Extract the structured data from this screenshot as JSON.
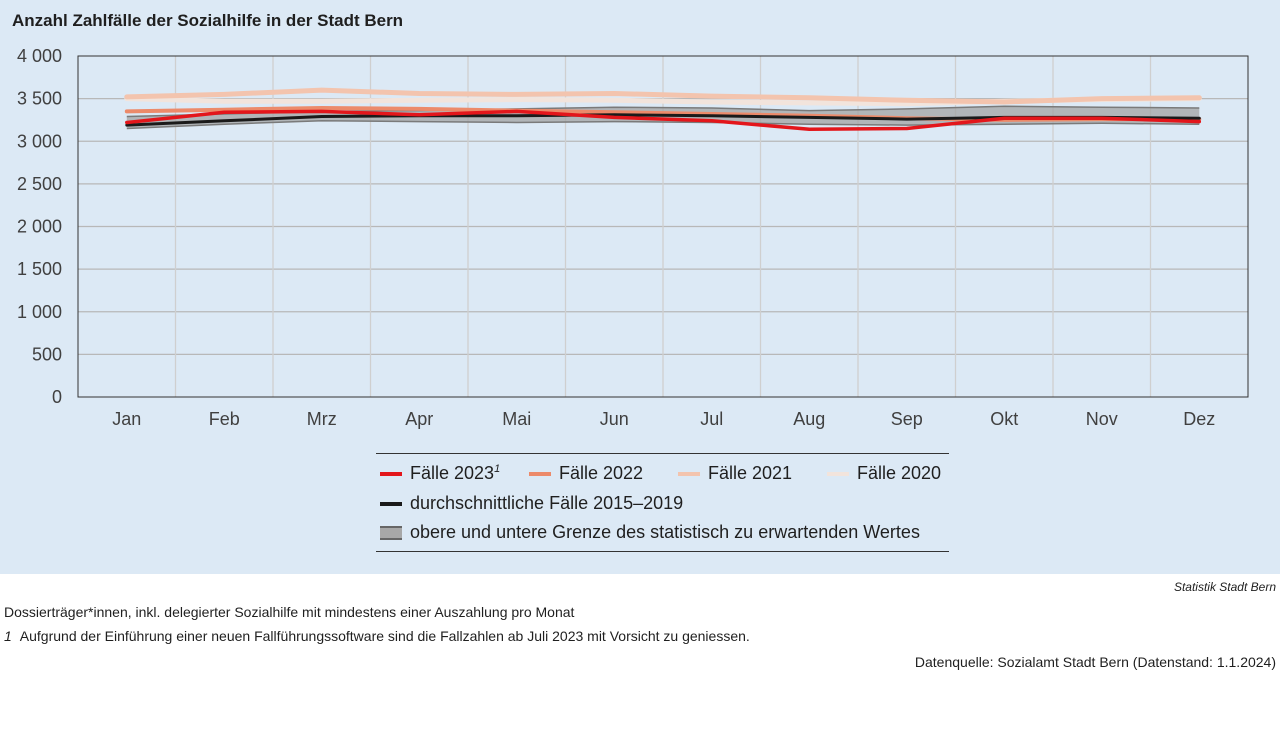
{
  "chart_data": {
    "type": "line",
    "title": "Anzahl Zahlfälle der Sozialhilfe in der Stadt Bern",
    "xlabel": "",
    "ylabel": "",
    "categories": [
      "Jan",
      "Feb",
      "Mrz",
      "Apr",
      "Mai",
      "Jun",
      "Jul",
      "Aug",
      "Sep",
      "Okt",
      "Nov",
      "Dez"
    ],
    "ylim": [
      0,
      4000
    ],
    "yticks": [
      0,
      500,
      1000,
      1500,
      2000,
      2500,
      3000,
      3500,
      4000
    ],
    "ytick_labels": [
      "0",
      "500",
      "1 000",
      "1 500",
      "2 000",
      "2 500",
      "3 000",
      "3 500",
      "4 000"
    ],
    "grid": true,
    "legend_position": "bottom",
    "band": {
      "name": "obere und untere Grenze des statistisch zu erwartenden Wertes",
      "upper": [
        3290,
        3320,
        3350,
        3360,
        3380,
        3400,
        3390,
        3360,
        3380,
        3410,
        3400,
        3390
      ],
      "lower": [
        3150,
        3200,
        3240,
        3230,
        3220,
        3230,
        3220,
        3200,
        3190,
        3200,
        3210,
        3200
      ],
      "color": "#9a9a9a"
    },
    "series": [
      {
        "name": "Fälle 2020",
        "color": "#f2e4dc",
        "values": [
          3500,
          3470,
          3470,
          3480,
          3490,
          3480,
          3460,
          3450,
          3440,
          3470,
          3490,
          3500
        ]
      },
      {
        "name": "Fälle 2021",
        "color": "#f3c4ae",
        "values": [
          3520,
          3550,
          3600,
          3560,
          3550,
          3560,
          3530,
          3510,
          3480,
          3460,
          3500,
          3510
        ]
      },
      {
        "name": "Fälle 2022",
        "color": "#ec8a6a",
        "values": [
          3350,
          3370,
          3390,
          3380,
          3360,
          3340,
          3320,
          3300,
          3270,
          3250,
          3260,
          3260
        ]
      },
      {
        "name": "durchschnittliche Fälle 2015–2019",
        "color": "#1a1a1a",
        "values": [
          3190,
          3240,
          3290,
          3300,
          3300,
          3310,
          3300,
          3280,
          3260,
          3280,
          3280,
          3270
        ]
      },
      {
        "name": "Fälle 2023",
        "color": "#e3161b",
        "values": [
          3220,
          3340,
          3350,
          3310,
          3350,
          3280,
          3240,
          3140,
          3150,
          3270,
          3270,
          3230
        ]
      }
    ]
  },
  "legend": {
    "item_2023": "Fälle 2023",
    "item_2023_sup": "1",
    "item_2022": "Fälle 2022",
    "item_2021": "Fälle 2021",
    "item_2020": "Fälle 2020",
    "item_avg": "durchschnittliche Fälle 2015–2019",
    "item_band": "obere und untere Grenze des statistisch zu erwartenden Wertes"
  },
  "footer": {
    "credit": "Statistik Stadt Bern",
    "note_1": "Dossierträger*innen, inkl. delegierter Sozialhilfe mit mindestens einer Auszahlung pro Monat",
    "note_2_marker": "1",
    "note_2": "Aufgrund der Einführung einer neuen Fallführungssoftware sind die Fallzahlen ab Juli 2023 mit Vorsicht zu geniessen.",
    "data_source": "Datenquelle: Sozialamt Stadt Bern (Datenstand: 1.1.2024)"
  }
}
